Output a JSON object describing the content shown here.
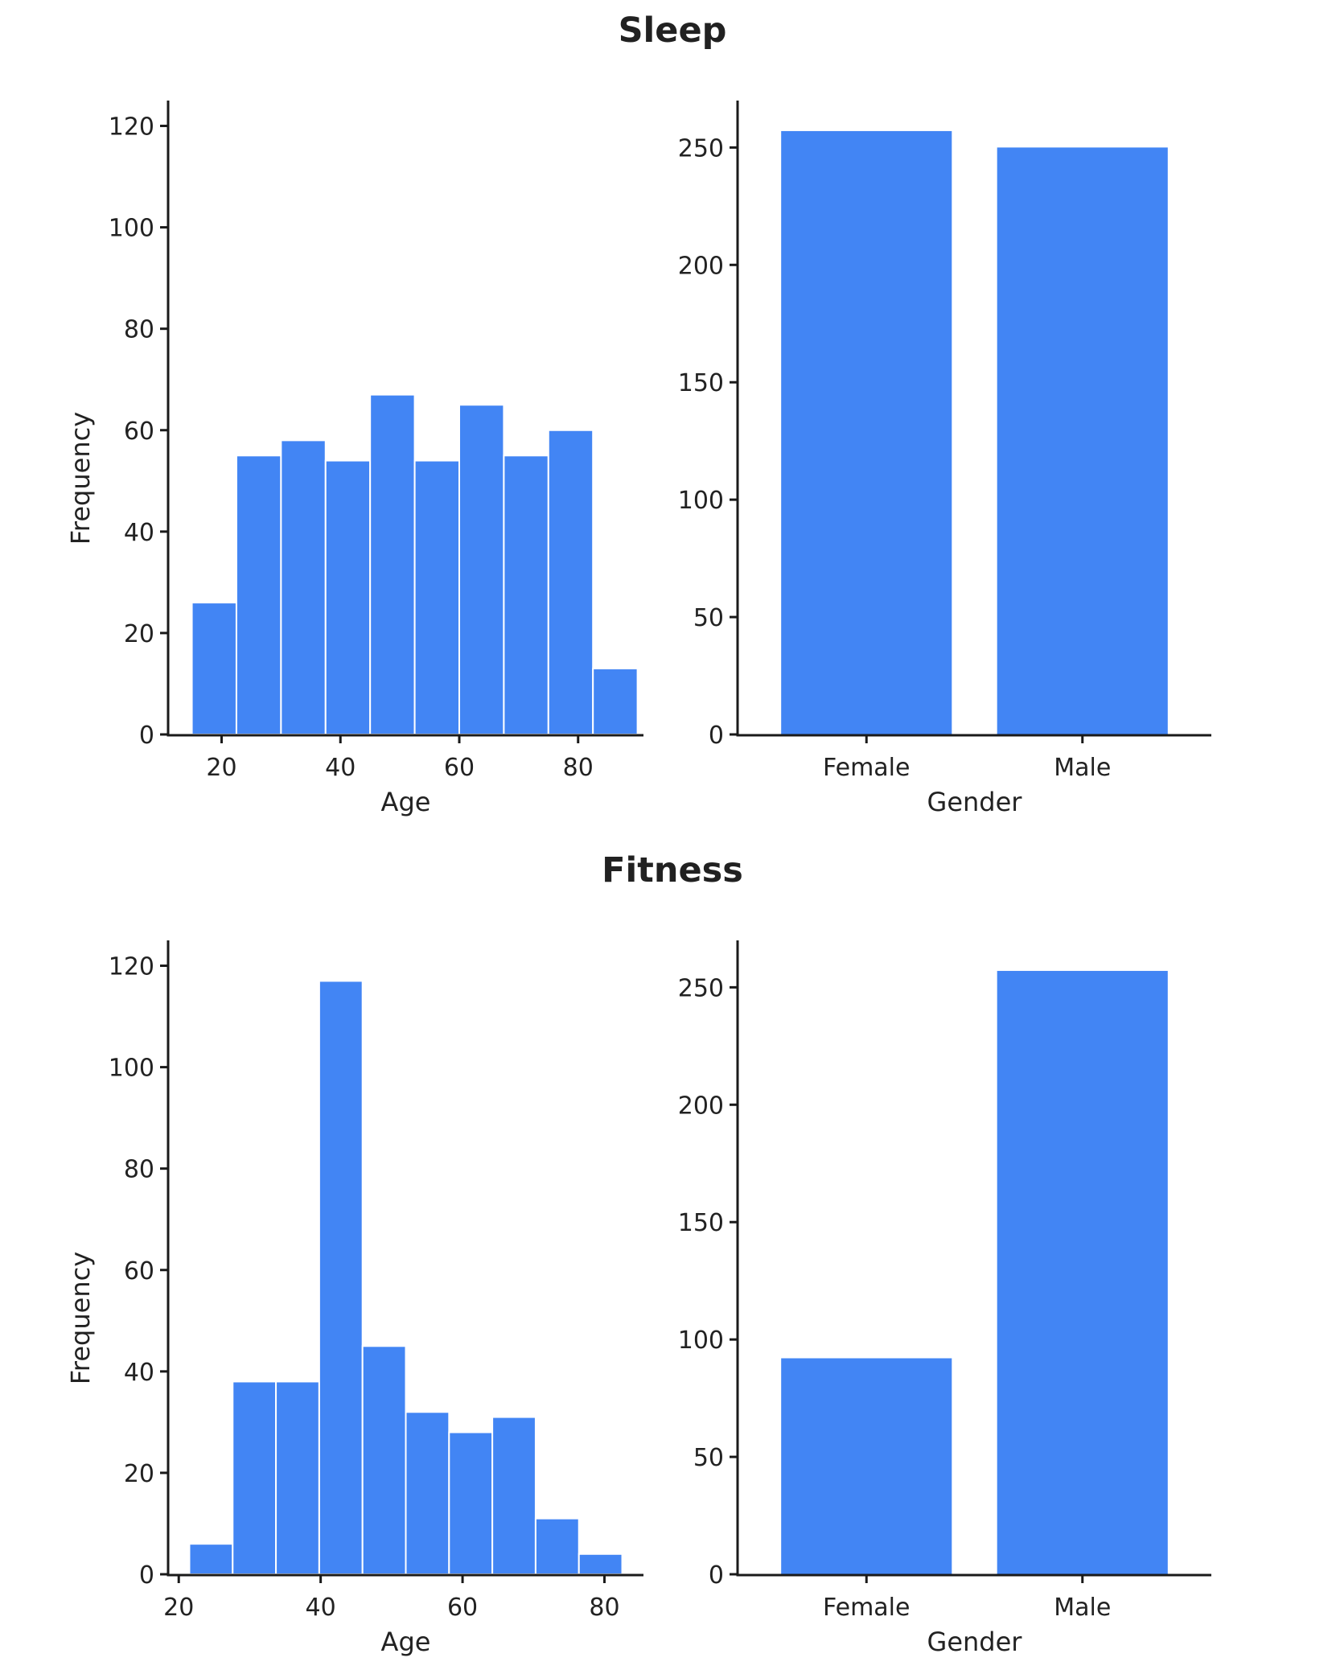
{
  "sections": [
    {
      "title": "Sleep"
    },
    {
      "title": "Fitness"
    }
  ],
  "colors": {
    "bar": "#4285f4",
    "axis": "#1a1a1a",
    "text": "#222222"
  },
  "chart_data": [
    {
      "id": "sleep-age",
      "type": "bar",
      "section": "Sleep",
      "title": "",
      "xlabel": "Age",
      "ylabel": "Frequency",
      "xlim": [
        11,
        91
      ],
      "ylim": [
        0,
        125
      ],
      "xticks": [
        20,
        40,
        60,
        80
      ],
      "yticks": [
        0,
        20,
        40,
        60,
        80,
        100,
        120
      ],
      "bins": [
        {
          "start": 15,
          "end": 22.5,
          "value": 26
        },
        {
          "start": 22.5,
          "end": 30,
          "value": 55
        },
        {
          "start": 30,
          "end": 37.5,
          "value": 58
        },
        {
          "start": 37.5,
          "end": 45,
          "value": 54
        },
        {
          "start": 45,
          "end": 52.5,
          "value": 67
        },
        {
          "start": 52.5,
          "end": 60,
          "value": 54
        },
        {
          "start": 60,
          "end": 67.5,
          "value": 65
        },
        {
          "start": 67.5,
          "end": 75,
          "value": 55
        },
        {
          "start": 75,
          "end": 82.5,
          "value": 60
        },
        {
          "start": 82.5,
          "end": 90,
          "value": 13
        }
      ]
    },
    {
      "id": "sleep-gender",
      "type": "bar",
      "section": "Sleep",
      "title": "",
      "xlabel": "Gender",
      "ylabel": "",
      "ylim": [
        0,
        270
      ],
      "yticks": [
        0,
        50,
        100,
        150,
        200,
        250
      ],
      "categories": [
        "Female",
        "Male"
      ],
      "values": [
        257,
        250
      ]
    },
    {
      "id": "fitness-age",
      "type": "bar",
      "section": "Fitness",
      "title": "",
      "xlabel": "Age",
      "ylabel": "Frequency",
      "xlim": [
        18.5,
        85.5
      ],
      "ylim": [
        0,
        125
      ],
      "xticks": [
        20,
        40,
        60,
        80
      ],
      "yticks": [
        0,
        20,
        40,
        60,
        80,
        100,
        120
      ],
      "bins": [
        {
          "start": 21.5,
          "end": 27.6,
          "value": 6
        },
        {
          "start": 27.6,
          "end": 33.7,
          "value": 38
        },
        {
          "start": 33.7,
          "end": 39.8,
          "value": 38
        },
        {
          "start": 39.8,
          "end": 45.9,
          "value": 117
        },
        {
          "start": 45.9,
          "end": 52,
          "value": 45
        },
        {
          "start": 52,
          "end": 58.1,
          "value": 32
        },
        {
          "start": 58.1,
          "end": 64.2,
          "value": 28
        },
        {
          "start": 64.2,
          "end": 70.3,
          "value": 31
        },
        {
          "start": 70.3,
          "end": 76.4,
          "value": 11
        },
        {
          "start": 76.4,
          "end": 82.5,
          "value": 4
        }
      ]
    },
    {
      "id": "fitness-gender",
      "type": "bar",
      "section": "Fitness",
      "title": "",
      "xlabel": "Gender",
      "ylabel": "",
      "ylim": [
        0,
        270
      ],
      "yticks": [
        0,
        50,
        100,
        150,
        200,
        250
      ],
      "categories": [
        "Female",
        "Male"
      ],
      "values": [
        92,
        257
      ]
    }
  ]
}
